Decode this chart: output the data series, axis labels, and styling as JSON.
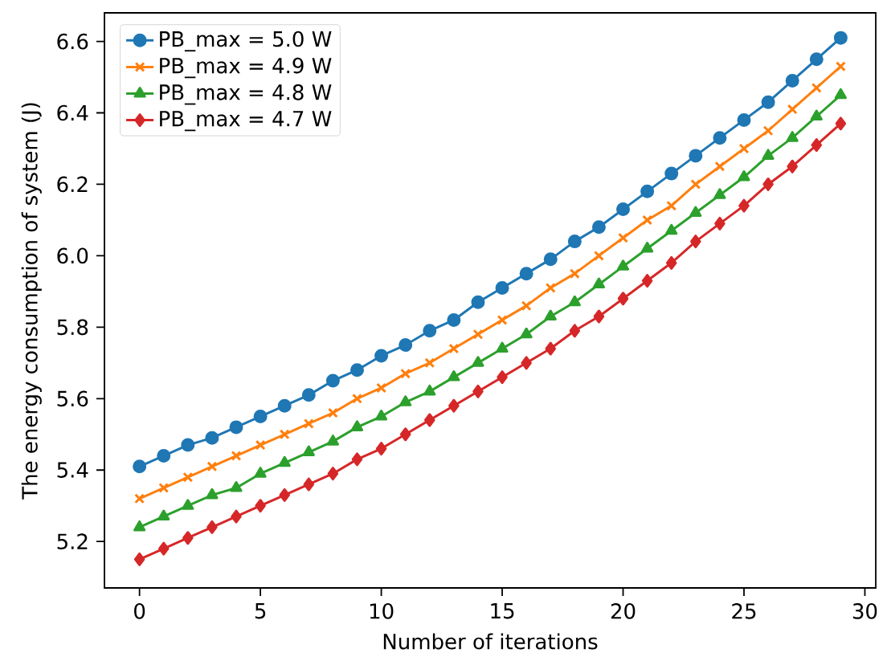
{
  "chart_data": {
    "type": "line",
    "xlabel": "Number of iterations",
    "ylabel": "The energy consumption of system (J)",
    "x": [
      0,
      1,
      2,
      3,
      4,
      5,
      6,
      7,
      8,
      9,
      10,
      11,
      12,
      13,
      14,
      15,
      16,
      17,
      18,
      19,
      20,
      21,
      22,
      23,
      24,
      25,
      26,
      27,
      28,
      29
    ],
    "xlim": [
      -1.45,
      30.45
    ],
    "ylim": [
      5.07,
      6.68
    ],
    "xticks": [
      0,
      5,
      10,
      15,
      20,
      25,
      30
    ],
    "yticks": [
      {
        "value": 5.2,
        "label": "5.2"
      },
      {
        "value": 5.4,
        "label": "5.4"
      },
      {
        "value": 5.6,
        "label": "5.6"
      },
      {
        "value": 5.8,
        "label": "5.8"
      },
      {
        "value": 6.0,
        "label": "6.0"
      },
      {
        "value": 6.2,
        "label": "6.2"
      },
      {
        "value": 6.4,
        "label": "6.4"
      },
      {
        "value": 6.6,
        "label": "6.6"
      }
    ],
    "grid": false,
    "legend": "top left",
    "line_style": "solid",
    "series": [
      {
        "name": "PB_max = 5.0 W",
        "color": "#1f77b4",
        "marker": "circle",
        "values": [
          5.41,
          5.44,
          5.47,
          5.49,
          5.52,
          5.55,
          5.58,
          5.61,
          5.65,
          5.68,
          5.72,
          5.75,
          5.79,
          5.82,
          5.87,
          5.91,
          5.95,
          5.99,
          6.04,
          6.08,
          6.13,
          6.18,
          6.23,
          6.28,
          6.33,
          6.38,
          6.43,
          6.49,
          6.55,
          6.61
        ]
      },
      {
        "name": "PB_max = 4.9 W",
        "color": "#ff7f0e",
        "marker": "cross",
        "values": [
          5.32,
          5.35,
          5.38,
          5.41,
          5.44,
          5.47,
          5.5,
          5.53,
          5.56,
          5.6,
          5.63,
          5.67,
          5.7,
          5.74,
          5.78,
          5.82,
          5.86,
          5.91,
          5.95,
          6.0,
          6.05,
          6.1,
          6.14,
          6.2,
          6.25,
          6.3,
          6.35,
          6.41,
          6.47,
          6.53
        ]
      },
      {
        "name": "PB_max = 4.8 W",
        "color": "#2ca02c",
        "marker": "triangle",
        "values": [
          5.24,
          5.27,
          5.3,
          5.33,
          5.35,
          5.39,
          5.42,
          5.45,
          5.48,
          5.52,
          5.55,
          5.59,
          5.62,
          5.66,
          5.7,
          5.74,
          5.78,
          5.83,
          5.87,
          5.92,
          5.97,
          6.02,
          6.07,
          6.12,
          6.17,
          6.22,
          6.28,
          6.33,
          6.39,
          6.45
        ]
      },
      {
        "name": "PB_max = 4.7 W",
        "color": "#d62728",
        "marker": "diamond",
        "values": [
          5.15,
          5.18,
          5.21,
          5.24,
          5.27,
          5.3,
          5.33,
          5.36,
          5.39,
          5.43,
          5.46,
          5.5,
          5.54,
          5.58,
          5.62,
          5.66,
          5.7,
          5.74,
          5.79,
          5.83,
          5.88,
          5.93,
          5.98,
          6.04,
          6.09,
          6.14,
          6.2,
          6.25,
          6.31,
          6.37
        ]
      }
    ]
  }
}
